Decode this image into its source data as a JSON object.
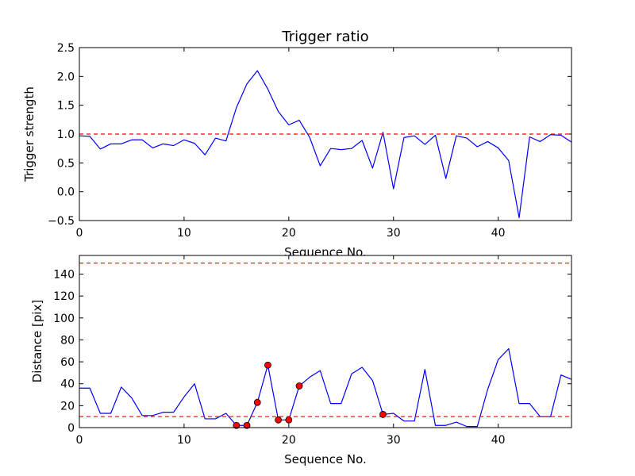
{
  "chart_data": [
    {
      "type": "line",
      "title": "Trigger ratio",
      "xlabel": "Sequence No.",
      "ylabel": "Trigger strength",
      "xlim": [
        0,
        47
      ],
      "ylim": [
        -0.5,
        2.5
      ],
      "xticks": [
        "0",
        "10",
        "20",
        "30",
        "40"
      ],
      "xtick_values": [
        0,
        10,
        20,
        30,
        40
      ],
      "yticks": [
        "−0.5",
        "0.0",
        "0.5",
        "1.0",
        "1.5",
        "2.0",
        "2.5"
      ],
      "ytick_values": [
        -0.5,
        0.0,
        0.5,
        1.0,
        1.5,
        2.0,
        2.5
      ],
      "series": [
        {
          "name": "trigger strength",
          "color": "#0000ff",
          "x": [
            0,
            1,
            2,
            3,
            4,
            5,
            6,
            7,
            8,
            9,
            10,
            11,
            12,
            13,
            14,
            15,
            16,
            17,
            18,
            19,
            20,
            21,
            22,
            23,
            24,
            25,
            26,
            27,
            28,
            29,
            30,
            31,
            32,
            33,
            34,
            35,
            36,
            37,
            38,
            39,
            40,
            41,
            42,
            43,
            44,
            45,
            46,
            47
          ],
          "y": [
            0.97,
            0.96,
            0.74,
            0.83,
            0.83,
            0.9,
            0.9,
            0.76,
            0.83,
            0.8,
            0.9,
            0.84,
            0.64,
            0.93,
            0.88,
            1.46,
            1.87,
            2.1,
            1.78,
            1.39,
            1.16,
            1.24,
            0.94,
            0.45,
            0.75,
            0.73,
            0.75,
            0.89,
            0.41,
            1.03,
            0.05,
            0.94,
            0.97,
            0.82,
            0.98,
            0.23,
            0.97,
            0.93,
            0.78,
            0.87,
            0.76,
            0.54,
            -0.45,
            0.95,
            0.87,
            0.99,
            0.98,
            0.86
          ]
        }
      ],
      "hlines": [
        {
          "y": 1.0,
          "color": "#ff0000",
          "style": "dashed"
        }
      ]
    },
    {
      "type": "line",
      "title": "",
      "xlabel": "Sequence No.",
      "ylabel": "Distance [pix]",
      "xlim": [
        0,
        47
      ],
      "ylim": [
        0,
        157
      ],
      "xticks": [
        "0",
        "10",
        "20",
        "30",
        "40"
      ],
      "xtick_values": [
        0,
        10,
        20,
        30,
        40
      ],
      "yticks": [
        "0",
        "20",
        "40",
        "60",
        "80",
        "100",
        "120",
        "140"
      ],
      "ytick_values": [
        0,
        20,
        40,
        60,
        80,
        100,
        120,
        140
      ],
      "series": [
        {
          "name": "distance",
          "color": "#0000ff",
          "x": [
            0,
            1,
            2,
            3,
            4,
            5,
            6,
            7,
            8,
            9,
            10,
            11,
            12,
            13,
            14,
            15,
            16,
            17,
            18,
            19,
            20,
            21,
            22,
            23,
            24,
            25,
            26,
            27,
            28,
            29,
            30,
            31,
            32,
            33,
            34,
            35,
            36,
            37,
            38,
            39,
            40,
            41,
            42,
            43,
            44,
            45,
            46,
            47
          ],
          "y": [
            36,
            36,
            13,
            13,
            37,
            27,
            11,
            11,
            14,
            14,
            28,
            40,
            8,
            8,
            13,
            2,
            2,
            23,
            57,
            7,
            7,
            38,
            46,
            52,
            22,
            22,
            49,
            55,
            43,
            12,
            13,
            6,
            6,
            53,
            2,
            2,
            5,
            1,
            1,
            35,
            62,
            72,
            22,
            22,
            10,
            10,
            48,
            44
          ]
        }
      ],
      "markers": {
        "color": "#ff0000",
        "x": [
          15,
          16,
          17,
          18,
          19,
          20,
          21,
          29
        ],
        "y": [
          2,
          2,
          23,
          57,
          7,
          7,
          38,
          12
        ]
      },
      "hlines": [
        {
          "y": 150,
          "color": "#ff0000",
          "style": "dashed"
        },
        {
          "y": 10,
          "color": "#ff0000",
          "style": "dashed"
        }
      ]
    }
  ]
}
